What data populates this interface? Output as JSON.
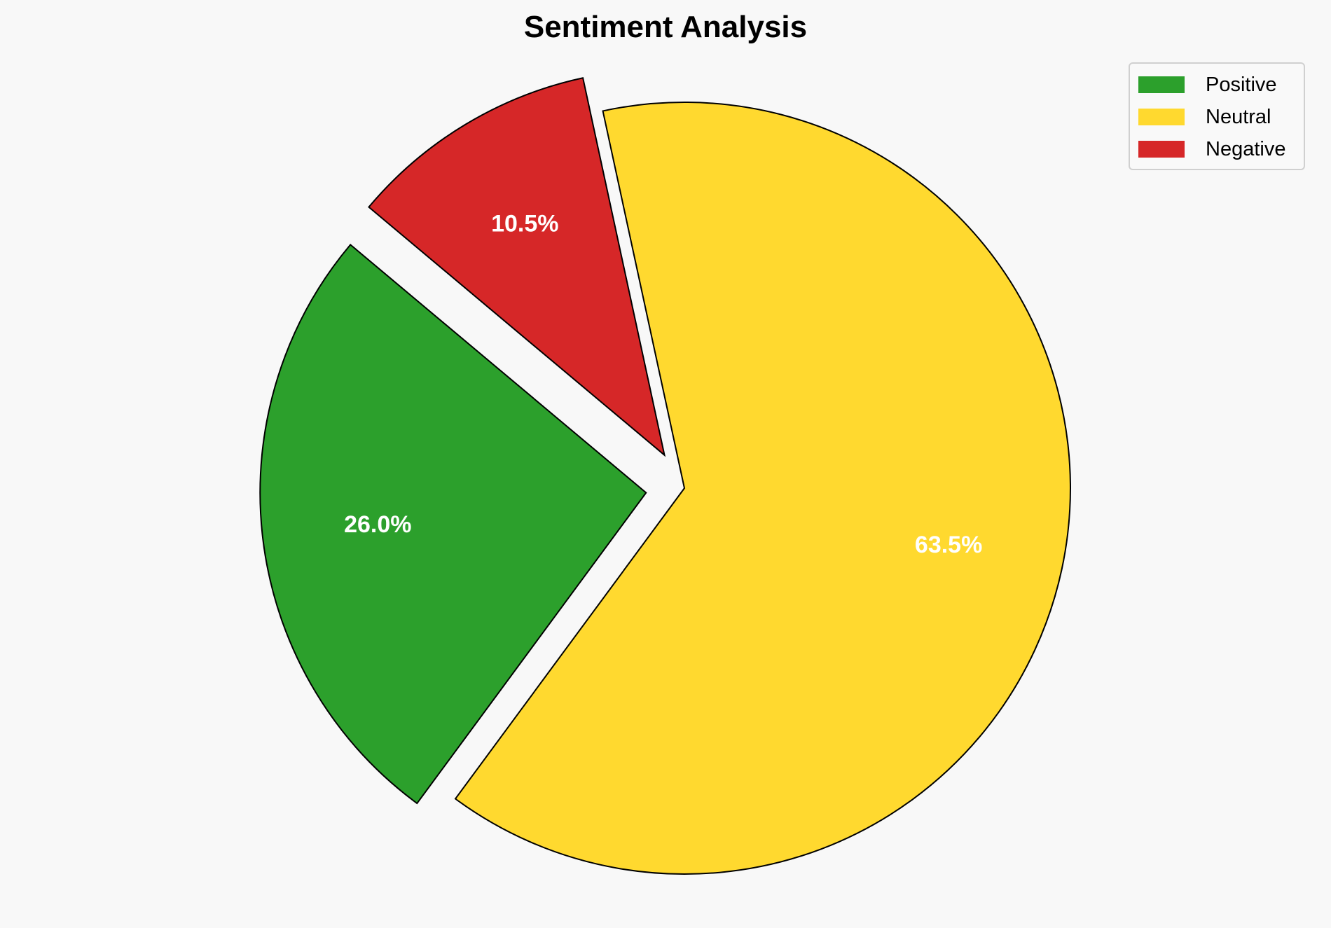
{
  "chart_data": {
    "type": "pie",
    "title": "Sentiment Analysis",
    "categories": [
      "Positive",
      "Neutral",
      "Negative"
    ],
    "values": [
      26.0,
      63.5,
      10.5
    ],
    "labels": [
      "26.0%",
      "63.5%",
      "10.5%"
    ],
    "colors": [
      "#2ca02c",
      "#ffd92f",
      "#d62728"
    ],
    "explode": [
      0.1,
      0,
      0.1
    ],
    "start_angle": 140,
    "direction": "counterclockwise",
    "legend_position": "top-right",
    "edge_color": "#000000",
    "label_color": "#ffffff",
    "background": "#f8f8f8"
  }
}
